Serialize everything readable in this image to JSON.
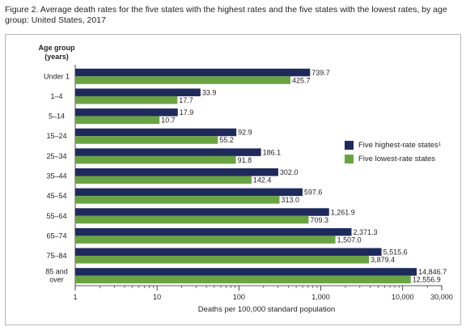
{
  "title": "Figure 2. Average death rates for the five states with the highest rates and the five states with the lowest rates, by age group: United States, 2017",
  "colors": {
    "high": "#1f2a5c",
    "low": "#6aa442"
  },
  "chart_data": {
    "type": "bar",
    "orientation": "horizontal",
    "x_scale": "log",
    "ylabel_lines": [
      "Age group",
      "(years)"
    ],
    "xlabel": "Deaths per 100,000 standard population",
    "xlim": [
      1,
      30000
    ],
    "x_ticks": [
      {
        "value": 1,
        "label": "1"
      },
      {
        "value": 10,
        "label": "10"
      },
      {
        "value": 100,
        "label": "100"
      },
      {
        "value": 1000,
        "label": "1,000"
      },
      {
        "value": 10000,
        "label": "10,000"
      },
      {
        "value": 30000,
        "label": "30,000"
      }
    ],
    "categories": [
      [
        "Under 1"
      ],
      [
        "1–4"
      ],
      [
        "5–14"
      ],
      [
        "15–24"
      ],
      [
        "25–34"
      ],
      [
        "35–44"
      ],
      [
        "45–54"
      ],
      [
        "55–64"
      ],
      [
        "65–74"
      ],
      [
        "75–84"
      ],
      [
        "85 and",
        "over"
      ]
    ],
    "series": [
      {
        "name": "Five highest-rate states",
        "name_sup": "1",
        "values": [
          739.7,
          33.9,
          17.9,
          92.9,
          186.1,
          302.0,
          597.6,
          1261.9,
          2371.3,
          5515.6,
          14846.7
        ],
        "labels": [
          "739.7",
          "33.9",
          "17.9",
          "92.9",
          "186.1",
          "302.0",
          "597.6",
          "1,261.9",
          "2,371.3",
          "5,515.6",
          "14,846.7"
        ]
      },
      {
        "name": "Five lowest-rate states",
        "name_sup": "",
        "values": [
          425.7,
          17.7,
          10.7,
          55.2,
          91.8,
          142.4,
          313.0,
          709.3,
          1507.0,
          3879.4,
          12556.9
        ],
        "labels": [
          "425.7",
          "17.7",
          "10.7",
          "55.2",
          "91.8",
          "142.4",
          "313.0",
          "709.3",
          "1,507.0",
          "3,879.4",
          "12,556.9"
        ]
      }
    ],
    "legend_position": "right",
    "grid": false
  }
}
